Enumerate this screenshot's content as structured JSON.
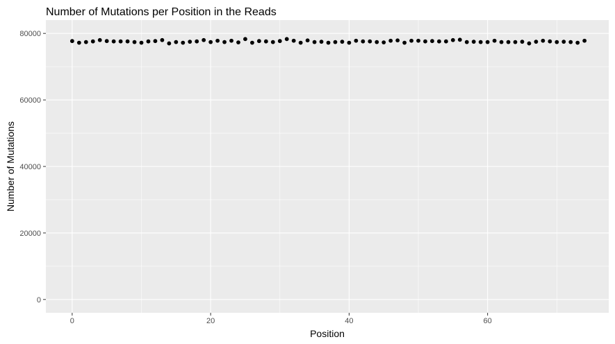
{
  "chart_data": {
    "type": "scatter",
    "title": "Number of Mutations per Position in the Reads",
    "xlabel": "Position",
    "ylabel": "Number of Mutations",
    "xlim": [
      -3.8,
      77.5
    ],
    "ylim": [
      -4000,
      84000
    ],
    "xticks": [
      0,
      20,
      40,
      60
    ],
    "yticks": [
      0,
      20000,
      40000,
      60000,
      80000
    ],
    "xtick_labels": [
      "0",
      "20",
      "40",
      "60"
    ],
    "ytick_labels": [
      "0",
      "20000",
      "40000",
      "60000",
      "80000"
    ],
    "grid": true,
    "panel_background": "#ebebeb",
    "point_color": "#000000",
    "x": [
      0,
      1,
      2,
      3,
      4,
      5,
      6,
      7,
      8,
      9,
      10,
      11,
      12,
      13,
      14,
      15,
      16,
      17,
      18,
      19,
      20,
      21,
      22,
      23,
      24,
      25,
      26,
      27,
      28,
      29,
      30,
      31,
      32,
      33,
      34,
      35,
      36,
      37,
      38,
      39,
      40,
      41,
      42,
      43,
      44,
      45,
      46,
      47,
      48,
      49,
      50,
      51,
      52,
      53,
      54,
      55,
      56,
      57,
      58,
      59,
      60,
      61,
      62,
      63,
      64,
      65,
      66,
      67,
      68,
      69,
      70,
      71,
      72,
      73,
      74
    ],
    "y": [
      77700,
      77200,
      77400,
      77600,
      78000,
      77700,
      77600,
      77600,
      77600,
      77400,
      77200,
      77600,
      77700,
      78000,
      77000,
      77400,
      77200,
      77500,
      77600,
      78000,
      77400,
      77800,
      77400,
      77800,
      77300,
      78300,
      77200,
      77700,
      77600,
      77400,
      77700,
      78300,
      77800,
      77200,
      77900,
      77400,
      77500,
      77200,
      77400,
      77500,
      77200,
      77800,
      77600,
      77600,
      77400,
      77300,
      77800,
      77900,
      77200,
      77800,
      77800,
      77600,
      77700,
      77600,
      77600,
      78000,
      78100,
      77400,
      77500,
      77400,
      77400,
      77800,
      77400,
      77400,
      77400,
      77500,
      77000,
      77500,
      77800,
      77600,
      77400,
      77500,
      77400,
      77200,
      77800
    ]
  }
}
